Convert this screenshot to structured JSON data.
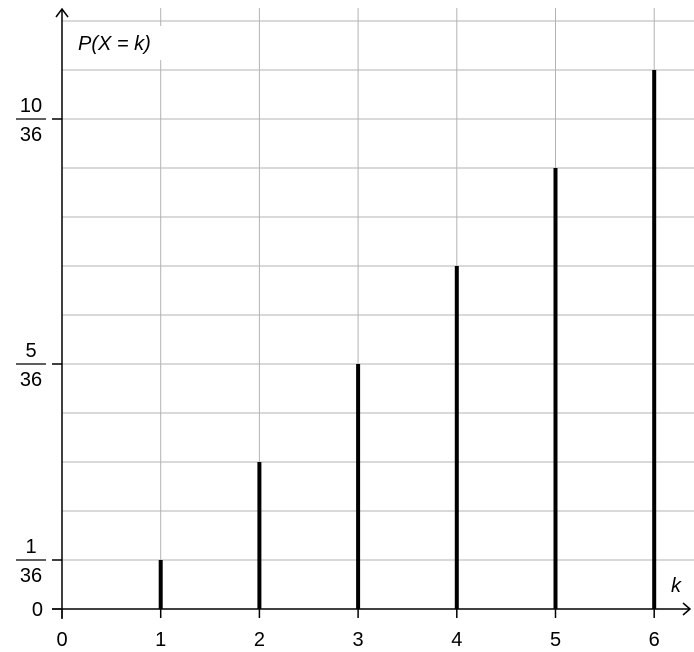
{
  "chart_data": {
    "type": "bar",
    "title": "",
    "xlabel": "k",
    "ylabel": "P(X = k)",
    "x": [
      1,
      2,
      3,
      4,
      5,
      6
    ],
    "values_numerators": [
      1,
      3,
      5,
      7,
      9,
      11
    ],
    "denominator": 36,
    "xlim": [
      0,
      6
    ],
    "ylim_numerator": [
      0,
      11
    ],
    "x_tick_labels": [
      "0",
      "1",
      "2",
      "3",
      "4",
      "5",
      "6"
    ],
    "y_tick_labels": [
      {
        "value": 0,
        "text": "0"
      },
      {
        "value": 1,
        "numerator": "1",
        "denominator": "36"
      },
      {
        "value": 5,
        "numerator": "5",
        "denominator": "36"
      },
      {
        "value": 10,
        "numerator": "10",
        "denominator": "36"
      }
    ],
    "grid": true,
    "bar_style": "thin vertical lines"
  }
}
